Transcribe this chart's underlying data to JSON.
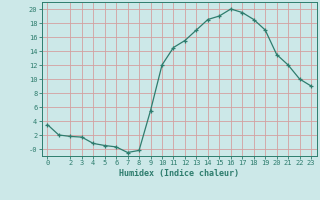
{
  "x": [
    0,
    1,
    2,
    3,
    4,
    5,
    6,
    7,
    8,
    9,
    10,
    11,
    12,
    13,
    14,
    15,
    16,
    17,
    18,
    19,
    20,
    21,
    22,
    23
  ],
  "y": [
    3.5,
    2.0,
    1.8,
    1.7,
    0.8,
    0.5,
    0.3,
    -0.5,
    -0.2,
    5.5,
    12.0,
    14.5,
    15.5,
    17.0,
    18.5,
    19.0,
    20.0,
    19.5,
    18.5,
    17.0,
    13.5,
    12.0,
    10.0,
    9.0
  ],
  "line_color": "#2e7d6e",
  "marker": "+",
  "bg_color": "#cce8e8",
  "grid_color": "#d4a0a0",
  "xlabel": "Humidex (Indice chaleur)",
  "ylim": [
    -1,
    21
  ],
  "xlim": [
    -0.5,
    23.5
  ],
  "yticks": [
    0,
    2,
    4,
    6,
    8,
    10,
    12,
    14,
    16,
    18,
    20
  ],
  "ytick_labels": [
    "-0",
    "2",
    "4",
    "6",
    "8",
    "10",
    "12",
    "14",
    "16",
    "18",
    "20"
  ],
  "xticks": [
    0,
    2,
    3,
    4,
    5,
    6,
    7,
    8,
    9,
    10,
    11,
    12,
    13,
    14,
    15,
    16,
    17,
    18,
    19,
    20,
    21,
    22,
    23
  ],
  "xtick_labels": [
    "0",
    "2",
    "3",
    "4",
    "5",
    "6",
    "7",
    "8",
    "9",
    "10",
    "11",
    "12",
    "13",
    "14",
    "15",
    "16",
    "17",
    "18",
    "19",
    "20",
    "21",
    "22",
    "23"
  ],
  "label_fontsize": 6.0,
  "tick_fontsize": 5.0
}
